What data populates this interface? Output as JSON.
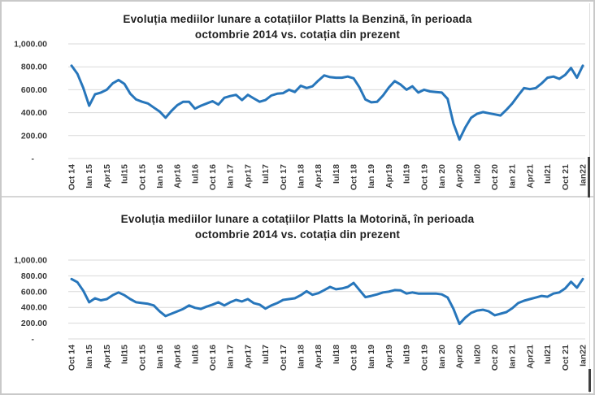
{
  "page": {
    "accent_blue": "#2776BB",
    "gridline_color": "#d9d9d9"
  },
  "chart_data": [
    {
      "type": "line",
      "title_lines": [
        "Evoluția mediilor lunare a cotațiilor Platts la Benzină, în perioada",
        "octombrie 2014 vs. cotația din prezent"
      ],
      "xlabel": "",
      "ylabel": "",
      "ylim": [
        0,
        1000
      ],
      "grid": true,
      "line_color": "#2776BB",
      "y_ticks": [
        {
          "label": "1,000.00",
          "value": 1000
        },
        {
          "label": "800.00",
          "value": 800
        },
        {
          "label": "600.00",
          "value": 600
        },
        {
          "label": "400.00",
          "value": 400
        },
        {
          "label": "200.00",
          "value": 200
        },
        {
          "label": "-",
          "value": 0
        }
      ],
      "x_tick_every": 3,
      "x_tick_labels": [
        "Oct 14",
        "Ian 15",
        "Apr15",
        "Iul15",
        "Oct 15",
        "Ian 16",
        "Apr16",
        "Iul16",
        "Oct 16",
        "Ian 17",
        "Apr17",
        "Iul17",
        "Oct 17",
        "Ian 18",
        "Apr18",
        "Iul18",
        "Oct 18",
        "Ian 19",
        "Apr19",
        "Iul19",
        "Oct 19",
        "Ian 20",
        "Apr20",
        "Iul20",
        "Oct 20",
        "Ian 21",
        "Apr21",
        "Iul21",
        "Oct 21",
        "Ian22"
      ],
      "values": [
        810,
        740,
        615,
        460,
        560,
        575,
        600,
        655,
        685,
        650,
        565,
        515,
        495,
        480,
        445,
        410,
        355,
        415,
        465,
        495,
        495,
        435,
        460,
        480,
        500,
        470,
        530,
        545,
        555,
        510,
        555,
        525,
        495,
        510,
        550,
        565,
        570,
        600,
        580,
        635,
        615,
        630,
        680,
        725,
        710,
        705,
        705,
        715,
        700,
        620,
        515,
        490,
        495,
        550,
        620,
        675,
        645,
        600,
        630,
        575,
        600,
        585,
        580,
        575,
        520,
        305,
        165,
        270,
        355,
        390,
        405,
        395,
        385,
        375,
        425,
        480,
        550,
        615,
        605,
        615,
        655,
        705,
        715,
        695,
        730,
        790,
        705,
        810
      ]
    },
    {
      "type": "line",
      "title_lines": [
        "Evoluția mediilor lunare a cotațiilor Platts la Motorină, în perioada",
        "octombrie 2014 vs. cotația din prezent"
      ],
      "xlabel": "",
      "ylabel": "",
      "ylim": [
        0,
        1000
      ],
      "grid": true,
      "line_color": "#2776BB",
      "y_ticks": [
        {
          "label": "1,000.00",
          "value": 1000
        },
        {
          "label": "800.00",
          "value": 800
        },
        {
          "label": "600.00",
          "value": 600
        },
        {
          "label": "400.00",
          "value": 400
        },
        {
          "label": "200.00",
          "value": 200
        },
        {
          "label": "-",
          "value": 0
        }
      ],
      "x_tick_every": 3,
      "x_tick_labels": [
        "Oct 14",
        "Ian 15",
        "Apr15",
        "Iul15",
        "Oct 15",
        "Ian 16",
        "Apr16",
        "Iul16",
        "Oct 16",
        "Ian 17",
        "Apr17",
        "Iul17",
        "Oct 17",
        "Ian 18",
        "Apr18",
        "Iul18",
        "Oct 18",
        "Ian 19",
        "Apr19",
        "Iul19",
        "Oct 19",
        "Ian 20",
        "Apr20",
        "Iul20",
        "Oct 20",
        "Ian 21",
        "Apr21",
        "Iul21",
        "Oct 21",
        "Ian22"
      ],
      "values": [
        760,
        720,
        610,
        465,
        515,
        490,
        505,
        555,
        590,
        555,
        505,
        465,
        455,
        445,
        425,
        350,
        290,
        320,
        350,
        380,
        425,
        395,
        380,
        410,
        435,
        465,
        425,
        465,
        495,
        475,
        505,
        455,
        435,
        385,
        425,
        455,
        495,
        505,
        515,
        555,
        605,
        560,
        580,
        620,
        660,
        630,
        640,
        660,
        710,
        620,
        530,
        545,
        565,
        590,
        600,
        620,
        615,
        575,
        590,
        575,
        575,
        575,
        575,
        565,
        525,
        380,
        190,
        270,
        330,
        360,
        370,
        350,
        300,
        320,
        340,
        390,
        455,
        485,
        505,
        525,
        545,
        535,
        575,
        590,
        640,
        725,
        650,
        760
      ]
    }
  ]
}
